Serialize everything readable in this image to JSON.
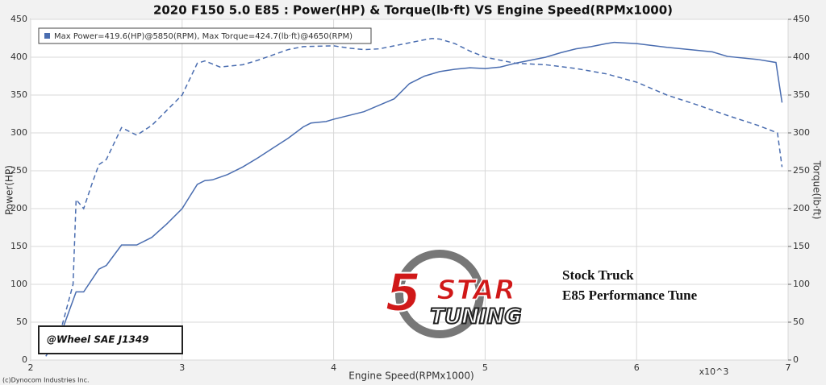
{
  "chart_data": {
    "type": "line",
    "title": "2020 F150 5.0 E85  : Power(HP) & Torque(lb·ft) VS Engine Speed(RPMx1000)",
    "x_label": "Engine Speed(RPMx1000)",
    "x_unit_label": "x10^3",
    "y_label": "Power(HP)",
    "y2_label": "Torque(lb·ft)",
    "legend_text": "Max Power=419.6(HP)@5850(RPM), Max Torque=424.7(lb·ft)@4650(RPM)",
    "legend": "upper left",
    "grid": true,
    "xlim": [
      2,
      7
    ],
    "xticks": [
      2,
      3,
      4,
      5,
      6,
      7
    ],
    "ylim": [
      0,
      450
    ],
    "yticks": [
      0,
      50,
      100,
      150,
      200,
      250,
      300,
      350,
      400,
      450
    ],
    "y2lim": [
      0,
      450
    ],
    "y2ticks": [
      0,
      50,
      100,
      150,
      200,
      250,
      300,
      350,
      400,
      450
    ],
    "series": [
      {
        "name": "Power",
        "color": "#4a6db0",
        "dash": false,
        "x": [
          2.1,
          2.2,
          2.3,
          2.35,
          2.4,
          2.45,
          2.5,
          2.6,
          2.7,
          2.8,
          2.9,
          3.0,
          3.1,
          3.15,
          3.2,
          3.3,
          3.4,
          3.5,
          3.6,
          3.7,
          3.8,
          3.85,
          3.95,
          4.0,
          4.2,
          4.4,
          4.5,
          4.6,
          4.7,
          4.8,
          4.9,
          5.0,
          5.1,
          5.2,
          5.4,
          5.5,
          5.6,
          5.7,
          5.8,
          5.85,
          6.0,
          6.2,
          6.4,
          6.5,
          6.6,
          6.8,
          6.92,
          6.96
        ],
        "values": [
          5,
          35,
          90,
          90,
          105,
          120,
          125,
          152,
          152,
          162,
          180,
          200,
          232,
          237,
          238,
          245,
          255,
          267,
          280,
          293,
          308,
          313,
          315,
          318,
          328,
          345,
          365,
          375,
          381,
          384,
          386,
          385,
          387,
          392,
          400,
          406,
          411,
          414,
          418,
          419.6,
          418,
          413,
          409,
          407,
          401,
          397,
          393,
          340
        ]
      },
      {
        "name": "Torque",
        "color": "#4a6db0",
        "dash": true,
        "axis": "y2",
        "x": [
          2.1,
          2.2,
          2.28,
          2.3,
          2.35,
          2.4,
          2.45,
          2.5,
          2.6,
          2.7,
          2.8,
          2.9,
          3.0,
          3.1,
          3.15,
          3.25,
          3.4,
          3.5,
          3.6,
          3.7,
          3.8,
          4.0,
          4.1,
          4.2,
          4.3,
          4.4,
          4.5,
          4.6,
          4.65,
          4.7,
          4.8,
          4.9,
          5.0,
          5.2,
          5.4,
          5.6,
          5.8,
          6.0,
          6.2,
          6.4,
          6.6,
          6.8,
          6.93,
          6.96
        ],
        "values": [
          10,
          40,
          100,
          212,
          200,
          230,
          258,
          265,
          307,
          297,
          310,
          330,
          350,
          392,
          395,
          387,
          390,
          396,
          403,
          410,
          414,
          415,
          412,
          410,
          411,
          415,
          419,
          423,
          424.7,
          424,
          418,
          408,
          400,
          392,
          390,
          385,
          378,
          367,
          350,
          337,
          323,
          310,
          300,
          255
        ]
      }
    ],
    "annotations": [
      "Stock Truck",
      "E85 Performance Tune",
      "@Wheel SAE J1349",
      "(c)Dynocom Industries Inc."
    ],
    "logo": [
      "5",
      "STAR",
      "TUNING"
    ]
  }
}
